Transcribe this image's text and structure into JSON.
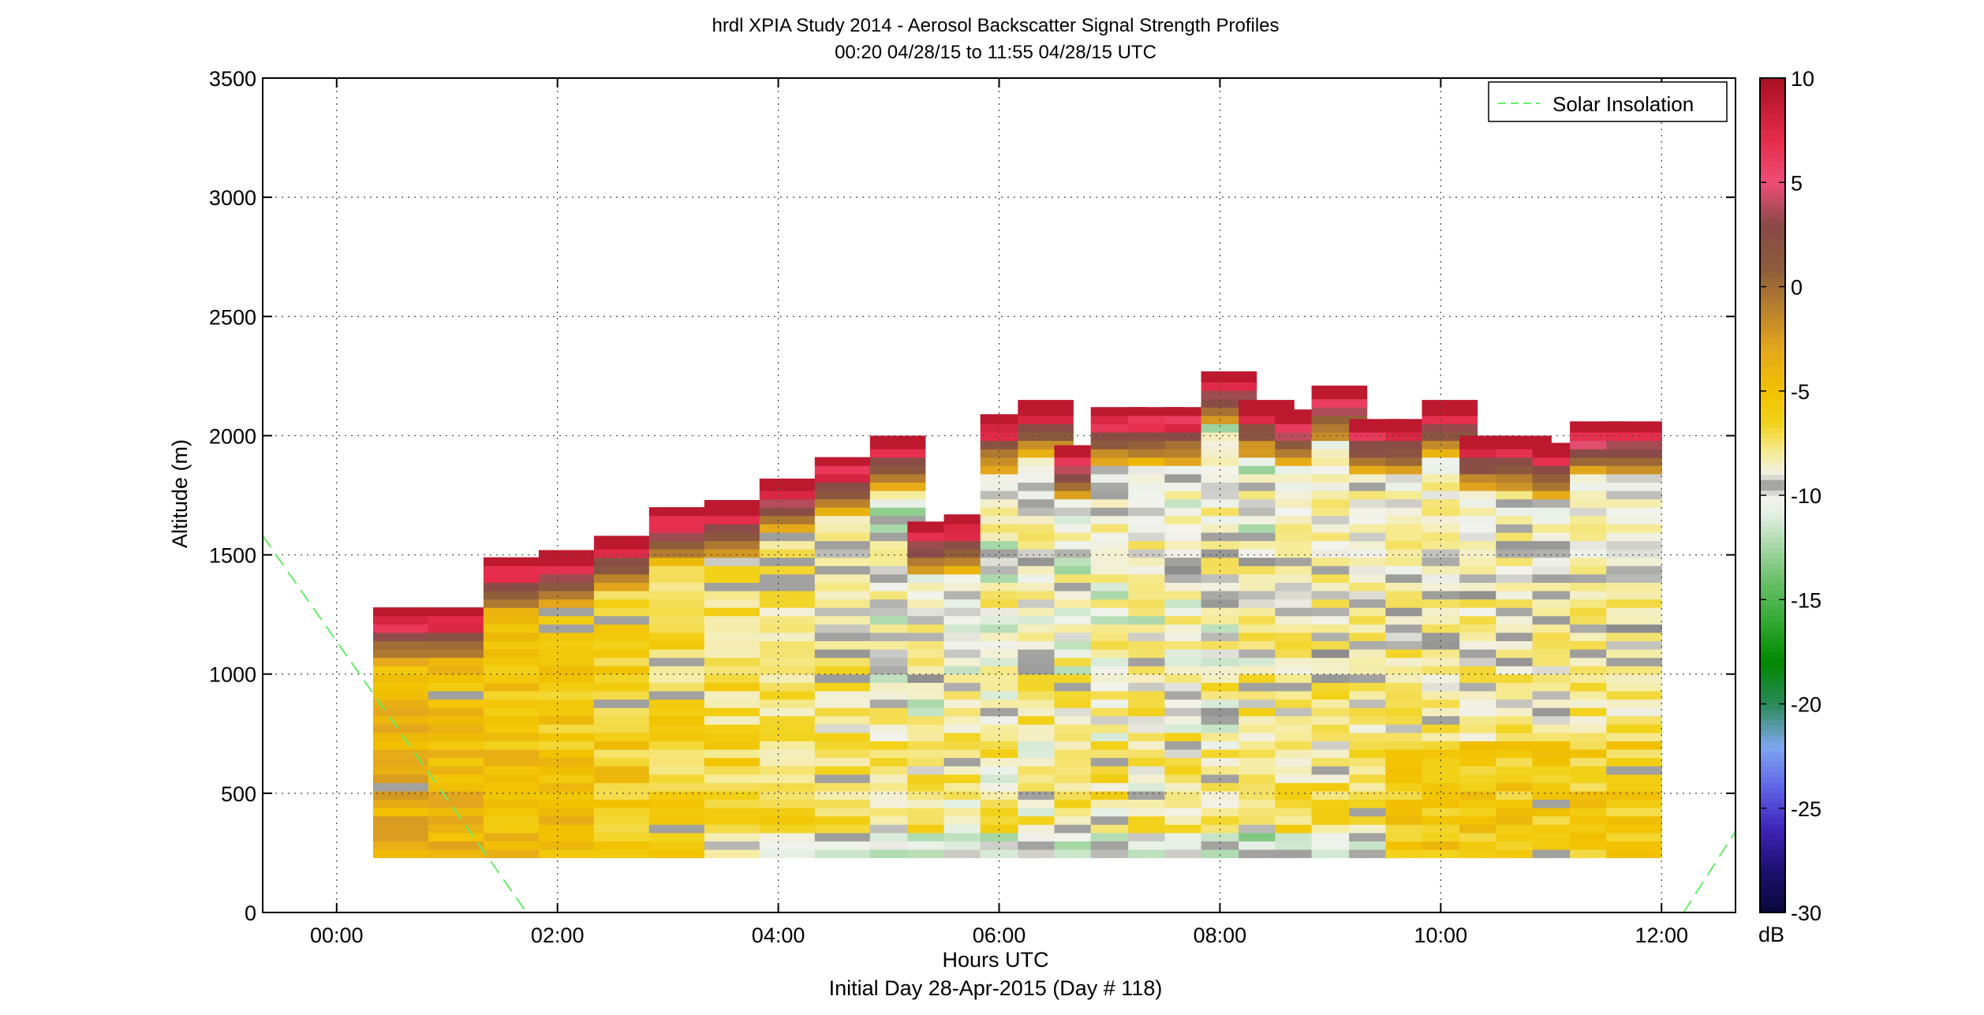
{
  "chart_data": {
    "type": "heatmap",
    "title": "hrdl XPIA Study 2014 - Aerosol Backscatter Signal Strength Profiles",
    "subtitle": "00:20 04/28/15 to 11:55 04/28/15  UTC",
    "xlabel": "Hours UTC",
    "xlabel2": "Initial Day 28-Apr-2015 (Day # 118)",
    "ylabel": "Altitude (m)",
    "xlim": [
      -0.67,
      12.67
    ],
    "ylim": [
      0,
      3500
    ],
    "x_ticks": [
      0,
      2,
      4,
      6,
      8,
      10,
      12
    ],
    "x_tick_labels": [
      "00:00",
      "02:00",
      "04:00",
      "06:00",
      "08:00",
      "10:00",
      "12:00"
    ],
    "y_ticks": [
      0,
      500,
      1000,
      1500,
      2000,
      2500,
      3000,
      3500
    ],
    "y_tick_labels": [
      "0",
      "500",
      "1000",
      "1500",
      "2000",
      "2500",
      "3000",
      "3500"
    ],
    "grid": true,
    "colorbar": {
      "range": [
        -30,
        10
      ],
      "ticks": [
        10,
        5,
        0,
        -5,
        -10,
        -15,
        -20,
        -25,
        -30
      ],
      "tick_labels": [
        "10",
        "5",
        "0",
        "-5",
        "-10",
        "-15",
        "-20",
        "-25",
        "-30"
      ],
      "unit": "dB"
    },
    "legend": {
      "position": "top-right",
      "entries": [
        "Solar Insolation"
      ]
    },
    "solar_insolation": {
      "style": "dashed",
      "color": "#66ee66",
      "x": [
        -0.67,
        1.72,
        12.2,
        12.67
      ],
      "y": [
        1580,
        0,
        0,
        340
      ]
    },
    "profile_base_m": 230,
    "profile_bin_m": 35,
    "profile_width_h": 0.5,
    "profiles": [
      {
        "t": 0.33,
        "top": 1280
      },
      {
        "t": 0.83,
        "top": 1280
      },
      {
        "t": 1.33,
        "top": 1490
      },
      {
        "t": 1.83,
        "top": 1520
      },
      {
        "t": 2.33,
        "top": 1580
      },
      {
        "t": 2.83,
        "top": 1700
      },
      {
        "t": 3.33,
        "top": 1730
      },
      {
        "t": 3.83,
        "top": 1820
      },
      {
        "t": 4.33,
        "top": 1910
      },
      {
        "t": 4.83,
        "top": 2000
      },
      {
        "t": 5.17,
        "top": 1640
      },
      {
        "t": 5.5,
        "top": 1670
      },
      {
        "t": 5.83,
        "top": 2090
      },
      {
        "t": 6.17,
        "top": 2150
      },
      {
        "t": 6.5,
        "top": 1960
      },
      {
        "t": 6.83,
        "top": 2120
      },
      {
        "t": 7.17,
        "top": 2120
      },
      {
        "t": 7.5,
        "top": 2120
      },
      {
        "t": 7.83,
        "top": 2270
      },
      {
        "t": 8.17,
        "top": 2150
      },
      {
        "t": 8.5,
        "top": 2110
      },
      {
        "t": 8.83,
        "top": 2210
      },
      {
        "t": 9.17,
        "top": 2070
      },
      {
        "t": 9.5,
        "top": 2070
      },
      {
        "t": 9.83,
        "top": 2150
      },
      {
        "t": 10.17,
        "top": 2000
      },
      {
        "t": 10.5,
        "top": 2000
      },
      {
        "t": 10.83,
        "top": 1970
      },
      {
        "t": 11.17,
        "top": 2060
      },
      {
        "t": 11.5,
        "top": 2060
      }
    ]
  }
}
